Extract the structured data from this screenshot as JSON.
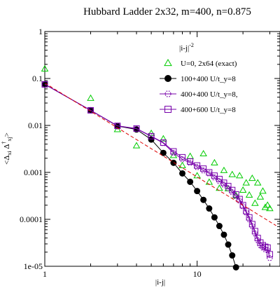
{
  "chart_data": {
    "type": "scatter",
    "title": "Hubbard Ladder 2x32, m=400, n=0.875",
    "xlabel": "|i-j|",
    "ylabel": "<Δ_xi Δ^†_xj>",
    "x_scale": "log",
    "y_scale": "log",
    "xlim": [
      1,
      35
    ],
    "ylim": [
      1e-05,
      1
    ],
    "x_ticks": [
      {
        "value": 1,
        "label": "1"
      },
      {
        "value": 10,
        "label": "10"
      }
    ],
    "y_ticks": [
      {
        "value": 1,
        "label": "1"
      },
      {
        "value": 0.1,
        "label": "0.1"
      },
      {
        "value": 0.01,
        "label": "0.01"
      },
      {
        "value": 0.001,
        "label": "0.001"
      },
      {
        "value": 0.0001,
        "label": "0.0001"
      },
      {
        "value": 1e-05,
        "label": "1e-05"
      }
    ],
    "legend": {
      "position": "top-right",
      "header": "|i-j|",
      "header_sup": "-2"
    },
    "series": [
      {
        "name": "U=0, 2x64 (exact)",
        "marker": "triangle-up",
        "filled": false,
        "color": "#00cc00",
        "line": false,
        "x": [
          1,
          2,
          3,
          4,
          5,
          6,
          7,
          8,
          9,
          10,
          11,
          12,
          13,
          14,
          15,
          16,
          17,
          18,
          19,
          20,
          21,
          22,
          23,
          24,
          25,
          26,
          27,
          28,
          29,
          30
        ],
        "y": [
          0.16,
          0.038,
          0.0082,
          0.0037,
          0.0068,
          0.0052,
          0.0023,
          0.0014,
          0.0022,
          0.00085,
          0.0025,
          0.00062,
          0.0016,
          0.00046,
          0.0011,
          0.00045,
          0.0009,
          0.00032,
          0.00085,
          0.00042,
          0.0006,
          0.00033,
          0.00075,
          0.00022,
          0.0006,
          0.0003,
          0.0004,
          0.00018,
          0.0002,
          0.00017
        ]
      },
      {
        "name": "100+400 U/t_y=8",
        "marker": "circle",
        "filled": true,
        "color": "#000000",
        "line": true,
        "x": [
          1,
          2,
          3,
          4,
          5,
          6,
          7,
          8,
          9,
          10,
          11,
          12,
          13,
          14,
          15,
          16,
          17,
          18
        ],
        "y": [
          0.075,
          0.021,
          0.0097,
          0.0082,
          0.005,
          0.0026,
          0.0016,
          0.00095,
          0.00063,
          0.0004,
          0.00026,
          0.00017,
          0.00011,
          7.2e-05,
          4.7e-05,
          2.9e-05,
          1.7e-05,
          9.5e-06
        ]
      },
      {
        "name": "400+400 U/t_y=8,",
        "marker": "hexagon",
        "filled": false,
        "color": "#7700aa",
        "line": true,
        "x": [
          1,
          2,
          3,
          4,
          5,
          6,
          7,
          8,
          9,
          10,
          11,
          12,
          13,
          14,
          15,
          16,
          17,
          18,
          19,
          20,
          21,
          22,
          23,
          24,
          25,
          26,
          27,
          28,
          29,
          30
        ],
        "y": [
          0.075,
          0.021,
          0.0098,
          0.0085,
          0.0058,
          0.0042,
          0.0026,
          0.0019,
          0.0016,
          0.0013,
          0.0011,
          0.00095,
          0.00078,
          0.00065,
          0.00055,
          0.00046,
          0.00038,
          0.00031,
          0.00025,
          0.00019,
          0.00014,
          0.0001,
          7.2e-05,
          5e-05,
          3.6e-05,
          2.8e-05,
          2.5e-05,
          2.3e-05,
          2.2e-05,
          1.5e-05
        ]
      },
      {
        "name": "400+600 U/t_y=8",
        "marker": "square",
        "filled": false,
        "color": "#7700aa",
        "line": true,
        "x": [
          1,
          2,
          3,
          4,
          5,
          6,
          7,
          8,
          9,
          10,
          11,
          12,
          13,
          14,
          15,
          16,
          17,
          18,
          19,
          20,
          21,
          22,
          23,
          24,
          25,
          26,
          27,
          28,
          29,
          30
        ],
        "y": [
          0.075,
          0.021,
          0.0098,
          0.0086,
          0.0059,
          0.0043,
          0.0028,
          0.0021,
          0.0017,
          0.0014,
          0.0012,
          0.001,
          0.00085,
          0.00072,
          0.0006,
          0.00051,
          0.00042,
          0.00034,
          0.00027,
          0.0002,
          0.00015,
          0.00011,
          7.9e-05,
          5.6e-05,
          4e-05,
          3.2e-05,
          2.8e-05,
          2.6e-05,
          2.5e-05,
          1.8e-05
        ]
      },
      {
        "name": "",
        "style": "dashed",
        "color": "#dd0000",
        "x": [
          1,
          33
        ],
        "y": [
          0.08,
          7.35e-05
        ]
      }
    ]
  }
}
